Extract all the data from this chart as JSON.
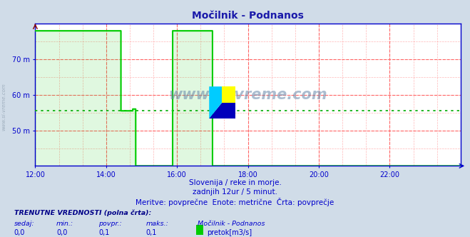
{
  "title": "Močilnik - Podnanos",
  "title_color": "#1a1aaa",
  "bg_color": "#d0dce8",
  "plot_bg_color": "#ffffff",
  "grid_color_v": "#ff9999",
  "grid_color_h": "#ff9999",
  "x_min": 0,
  "x_max": 144,
  "y_min": 40,
  "y_max": 80,
  "y_ticks": [
    50,
    60,
    70
  ],
  "y_tick_labels": [
    "50 m",
    "60 m",
    "70 m"
  ],
  "x_tick_positions": [
    0,
    24,
    48,
    72,
    96,
    120,
    144
  ],
  "x_tick_labels": [
    "12:00",
    "14:00",
    "16:00",
    "18:00",
    "20:00",
    "22:00",
    ""
  ],
  "avg_line_y": 55.5,
  "avg_line_color": "#00aa00",
  "line_color": "#00cc00",
  "axis_color": "#0000cc",
  "border_color": "#0000cc",
  "subtitle1": "Slovenija / reke in morje.",
  "subtitle2": "zadnjih 12ur / 5 minut.",
  "subtitle3": "Meritve: povprečne  Enote: metrične  Črta: povprečje",
  "footer_bold": "TRENUTNE VREDNOSTI (polna črta):",
  "col_headers": [
    "sedaj:",
    "min.:",
    "povpr.:",
    "maks.:",
    "Močilnik - Podnanos"
  ],
  "col_values": [
    "0,0",
    "0,0",
    "0,1",
    "0,1"
  ],
  "legend_color": "#00cc00",
  "legend_label": "pretok[m3/s]",
  "watermark_text": "www.si-vreme.com",
  "watermark_color": "#6688aa",
  "side_watermark_color": "#8899aa",
  "logo_colors": [
    "#ffff00",
    "#00ccff",
    "#0000bb"
  ]
}
